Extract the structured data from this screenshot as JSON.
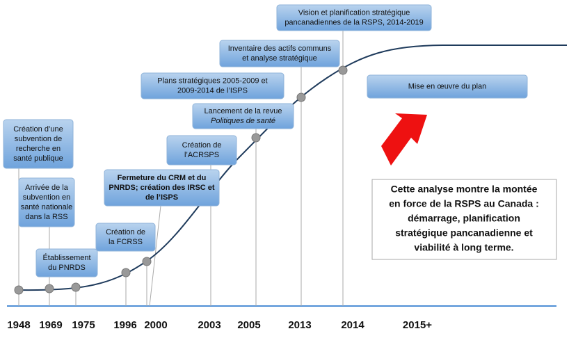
{
  "boxes": [
    {
      "lines": [
        "Création d’une",
        "subvention de",
        "recherche en",
        "santé publique"
      ]
    },
    {
      "lines": [
        "Arrivée de la",
        "subvention en",
        "santé nationale",
        "dans la RSS"
      ]
    },
    {
      "lines": [
        "Établissement",
        "du PNRDS"
      ]
    },
    {
      "lines": [
        "Création de",
        "la FCRSS"
      ]
    },
    {
      "lines": [
        "Fermeture du CRM et du",
        "PNRDS; création des IRSC et",
        "de l’ISPS"
      ]
    },
    {
      "lines": [
        "Création de",
        "l’ACRSPS"
      ]
    },
    {
      "lines": [
        "Lancement de la revue",
        "Politiques de santé"
      ]
    },
    {
      "lines": [
        "Plans stratégiques 2005-2009  et",
        "2009-2014  de l’ISPS"
      ]
    },
    {
      "lines": [
        "Inventaire des actifs communs",
        "et analyse stratégique"
      ]
    },
    {
      "lines": [
        "Vision et planification stratégique",
        "pancanadiennes de la RSPS, 2014-2019"
      ]
    },
    {
      "lines": [
        "Mise en œuvre du plan"
      ]
    }
  ],
  "years": [
    "1948",
    "1969",
    "1975",
    "1996",
    "2000",
    "2003",
    "2005",
    "2013",
    "2014",
    "2015+"
  ],
  "note": {
    "lines": [
      "Cette analyse montre la montée",
      "en force de la RSPS au Canada :",
      "démarrage, planification",
      "stratégique pancanadienne et",
      "viabilité à long terme."
    ]
  }
}
